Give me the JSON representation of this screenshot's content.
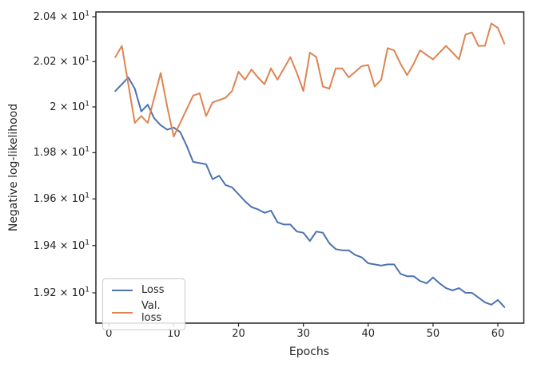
{
  "figure": {
    "background": "#ffffff",
    "spine_color": "#262626",
    "text_color": "#262626"
  },
  "chart_data": {
    "type": "line",
    "title": "",
    "xlabel": "Epochs",
    "ylabel": "Negative log-likelihood",
    "yscale": "log",
    "grid": false,
    "legend_position": "lower left",
    "xlim": [
      -2,
      64
    ],
    "xticks": {
      "values": [
        0,
        10,
        20,
        30,
        40,
        50,
        60
      ],
      "labels": [
        "0",
        "10",
        "20",
        "30",
        "40",
        "50",
        "60"
      ]
    },
    "yticks": {
      "values": [
        20.4,
        20.2,
        20.0,
        19.8,
        19.6,
        19.4,
        19.2
      ],
      "mantissas": [
        "2.04",
        "2.02",
        "2",
        "1.98",
        "1.96",
        "1.94",
        "1.92"
      ],
      "exponent": "1"
    },
    "x": [
      1,
      2,
      3,
      4,
      5,
      6,
      7,
      8,
      9,
      10,
      11,
      12,
      13,
      14,
      15,
      16,
      17,
      18,
      19,
      20,
      21,
      22,
      23,
      24,
      25,
      26,
      27,
      28,
      29,
      30,
      31,
      32,
      33,
      34,
      35,
      36,
      37,
      38,
      39,
      40,
      41,
      42,
      43,
      44,
      45,
      46,
      47,
      48,
      49,
      50,
      51,
      52,
      53,
      54,
      55,
      56,
      57,
      58,
      59,
      60,
      61
    ],
    "series": [
      {
        "name": "Loss",
        "color": "#4c72b0",
        "values": [
          20.07,
          20.1,
          20.13,
          20.08,
          19.98,
          20.01,
          19.95,
          19.92,
          19.9,
          19.91,
          19.89,
          19.83,
          19.76,
          19.755,
          19.75,
          19.685,
          19.7,
          19.66,
          19.65,
          19.62,
          19.59,
          19.565,
          19.555,
          19.54,
          19.55,
          19.5,
          19.49,
          19.49,
          19.46,
          19.455,
          19.42,
          19.46,
          19.455,
          19.41,
          19.385,
          19.38,
          19.38,
          19.36,
          19.35,
          19.325,
          19.32,
          19.315,
          19.32,
          19.32,
          19.28,
          19.27,
          19.27,
          19.25,
          19.24,
          19.265,
          19.24,
          19.22,
          19.21,
          19.22,
          19.2,
          19.2,
          19.18,
          19.16,
          19.15,
          19.17,
          19.14
        ]
      },
      {
        "name": "Val. loss",
        "color": "#dd8452",
        "values": [
          20.22,
          20.27,
          20.1,
          19.93,
          19.96,
          19.93,
          20.04,
          20.15,
          20.0,
          19.87,
          19.93,
          19.99,
          20.05,
          20.06,
          19.96,
          20.02,
          20.03,
          20.04,
          20.07,
          20.155,
          20.12,
          20.165,
          20.13,
          20.1,
          20.17,
          20.12,
          20.17,
          20.22,
          20.15,
          20.07,
          20.24,
          20.22,
          20.09,
          20.08,
          20.17,
          20.17,
          20.13,
          20.155,
          20.18,
          20.185,
          20.09,
          20.12,
          20.26,
          20.25,
          20.19,
          20.14,
          20.19,
          20.25,
          20.23,
          20.21,
          20.24,
          20.27,
          20.24,
          20.21,
          20.32,
          20.33,
          20.27,
          20.27,
          20.37,
          20.35,
          20.28
        ]
      }
    ]
  }
}
